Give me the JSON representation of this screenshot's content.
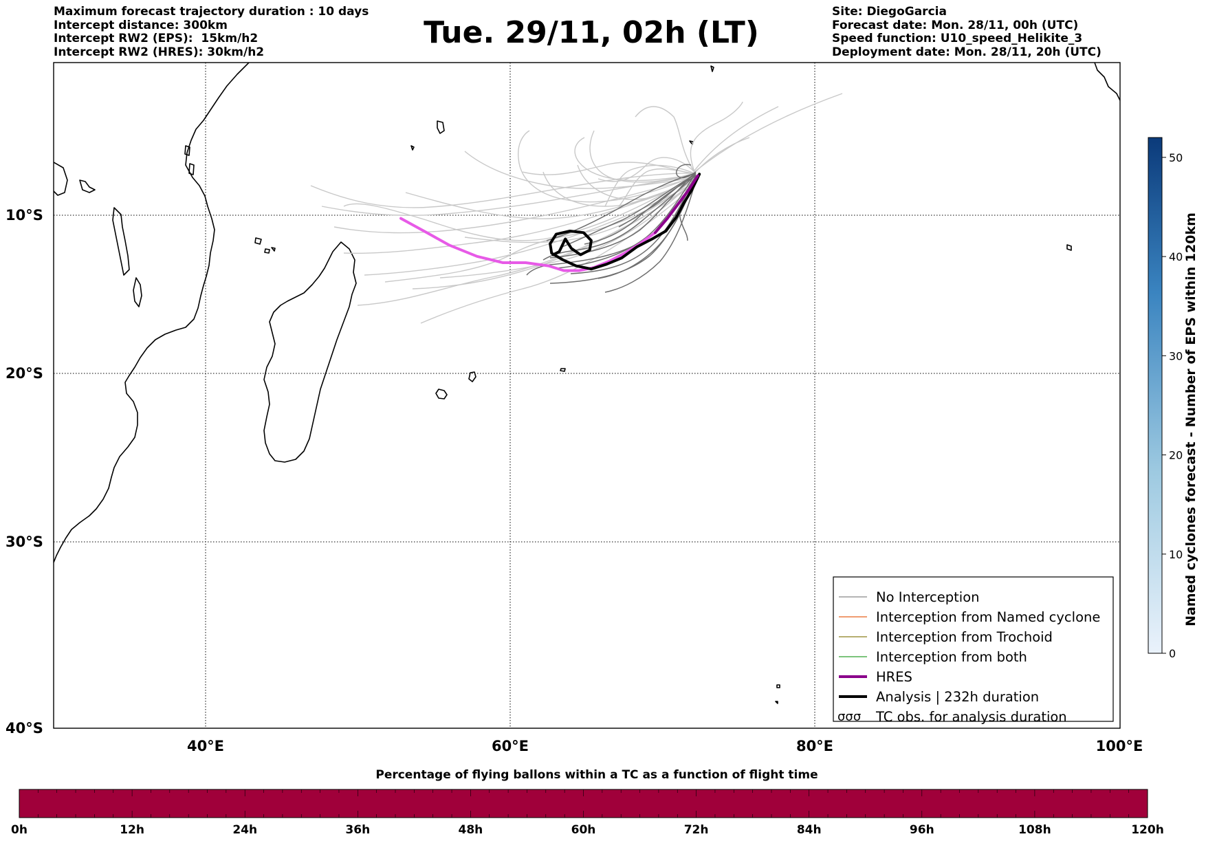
{
  "header": {
    "left_lines": [
      "Maximum forecast trajectory duration : 10 days",
      "Intercept distance: 300km",
      "Intercept RW2 (EPS):  15km/h2",
      "Intercept RW2 (HRES): 30km/h2"
    ],
    "title": "Tue. 29/11, 02h (LT)",
    "right_lines": [
      "Site: DiegoGarcia",
      "Forecast date: Mon. 28/11, 00h (UTC)",
      "Speed function: U10_speed_Helikite_3",
      "Deployment date: Mon. 28/11, 20h (UTC)"
    ]
  },
  "map": {
    "lon_ticks": [
      "40°E",
      "60°E",
      "80°E",
      "100°E"
    ],
    "lat_ticks": [
      "10°S",
      "20°S",
      "30°S",
      "40°S"
    ],
    "lon_range": [
      30,
      100
    ],
    "lat_range": [
      -40,
      2
    ],
    "launch_site": [
      72.4,
      -7.3
    ]
  },
  "legend": {
    "items": [
      {
        "label": "No Interception",
        "color": "#888888"
      },
      {
        "label": "Interception from Named cyclone",
        "color": "#e8601c"
      },
      {
        "label": "Interception from Trochoid",
        "color": "#8b7d1a"
      },
      {
        "label": "Interception from both",
        "color": "#2ca02c"
      },
      {
        "label": "HRES",
        "color": "#8b008b"
      },
      {
        "label": "Analysis | 232h duration",
        "color": "#000000"
      },
      {
        "label": "TC obs. for analysis duration",
        "color": "#000000",
        "icon": "cyclone-symbols"
      }
    ]
  },
  "colorbar_right": {
    "label": "Named cyclones forecast - Number of EPS within 120km",
    "ticks": [
      "0",
      "10",
      "20",
      "30",
      "40",
      "50"
    ],
    "range": [
      0,
      52
    ],
    "color_low": "#eaf2fb",
    "color_high": "#0b3a7a"
  },
  "colorbar_bottom": {
    "title": "Percentage of flying ballons within a TC as a function of flight time",
    "ticks": [
      "0h",
      "12h",
      "24h",
      "36h",
      "48h",
      "60h",
      "72h",
      "84h",
      "96h",
      "108h",
      "120h"
    ],
    "fill_color": "#a0003a"
  },
  "chart_data": {
    "type": "line",
    "series": [
      {
        "name": "HRES",
        "color": "#e75ae7",
        "points": [
          [
            52.8,
            -10.2
          ],
          [
            54.5,
            -11.1
          ],
          [
            56.0,
            -11.9
          ],
          [
            57.8,
            -12.6
          ],
          [
            59.5,
            -13.0
          ],
          [
            61.0,
            -13.0
          ],
          [
            62.5,
            -13.2
          ],
          [
            63.5,
            -13.5
          ],
          [
            64.5,
            -13.5
          ],
          [
            65.5,
            -13.3
          ],
          [
            66.5,
            -12.9
          ],
          [
            67.5,
            -12.4
          ],
          [
            68.5,
            -11.8
          ],
          [
            69.5,
            -11.1
          ],
          [
            70.3,
            -10.2
          ],
          [
            71.0,
            -9.3
          ],
          [
            71.7,
            -8.4
          ],
          [
            72.3,
            -7.5
          ]
        ]
      },
      {
        "name": "Analysis | 232h duration",
        "color": "#000000",
        "points": [
          [
            72.4,
            -7.4
          ],
          [
            71.9,
            -8.4
          ],
          [
            71.4,
            -9.2
          ],
          [
            70.9,
            -10.1
          ],
          [
            70.2,
            -11.0
          ],
          [
            69.3,
            -11.5
          ],
          [
            68.3,
            -12.0
          ],
          [
            67.3,
            -12.7
          ],
          [
            66.3,
            -13.1
          ],
          [
            65.3,
            -13.4
          ],
          [
            64.3,
            -13.2
          ],
          [
            63.4,
            -12.8
          ],
          [
            62.7,
            -12.4
          ],
          [
            62.6,
            -11.8
          ],
          [
            63.0,
            -11.2
          ],
          [
            63.9,
            -11.0
          ],
          [
            64.8,
            -11.1
          ],
          [
            65.3,
            -11.6
          ],
          [
            65.2,
            -12.2
          ],
          [
            64.6,
            -12.5
          ],
          [
            64.0,
            -12.1
          ],
          [
            63.6,
            -11.5
          ],
          [
            63.2,
            -12.3
          ],
          [
            62.8,
            -12.5
          ]
        ]
      }
    ]
  }
}
